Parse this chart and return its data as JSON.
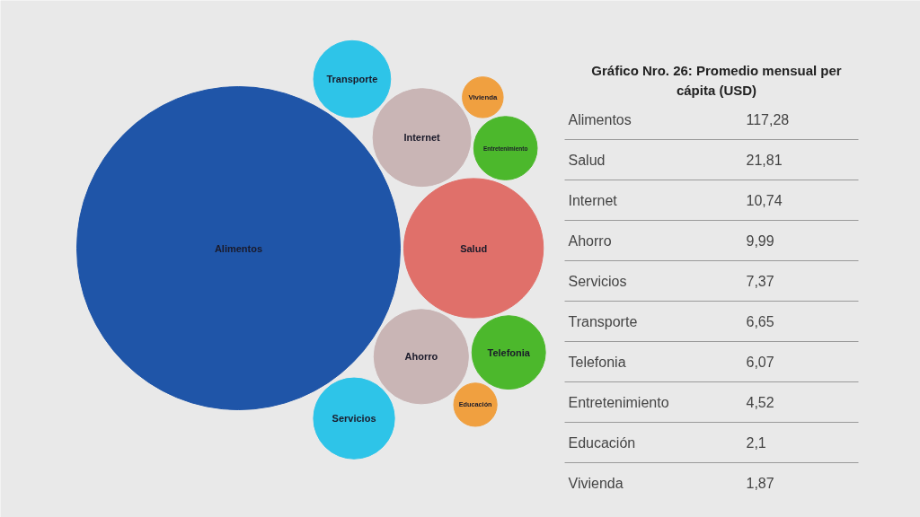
{
  "chart_data": {
    "type": "other",
    "title": "Gráfico Nro. 26: Promedio mensual per cápita (USD)",
    "categories": [
      "Alimentos",
      "Salud",
      "Internet",
      "Ahorro",
      "Servicios",
      "Transporte",
      "Telefonia",
      "Entretenimiento",
      "Educación",
      "Vivienda"
    ],
    "values": [
      117.28,
      21.81,
      10.74,
      9.99,
      7.37,
      6.65,
      6.07,
      4.52,
      2.1,
      1.87
    ],
    "value_labels": [
      "117,28",
      "21,81",
      "10,74",
      "9,99",
      "7,37",
      "6,65",
      "6,07",
      "4,52",
      "2,1",
      "1,87"
    ],
    "colors": [
      "#1f55a8",
      "#e0706a",
      "#c9b5b5",
      "#c9b5b5",
      "#2ec4e8",
      "#2ec4e8",
      "#4cb82c",
      "#4cb82c",
      "#f0a040",
      "#f0a040"
    ]
  }
}
